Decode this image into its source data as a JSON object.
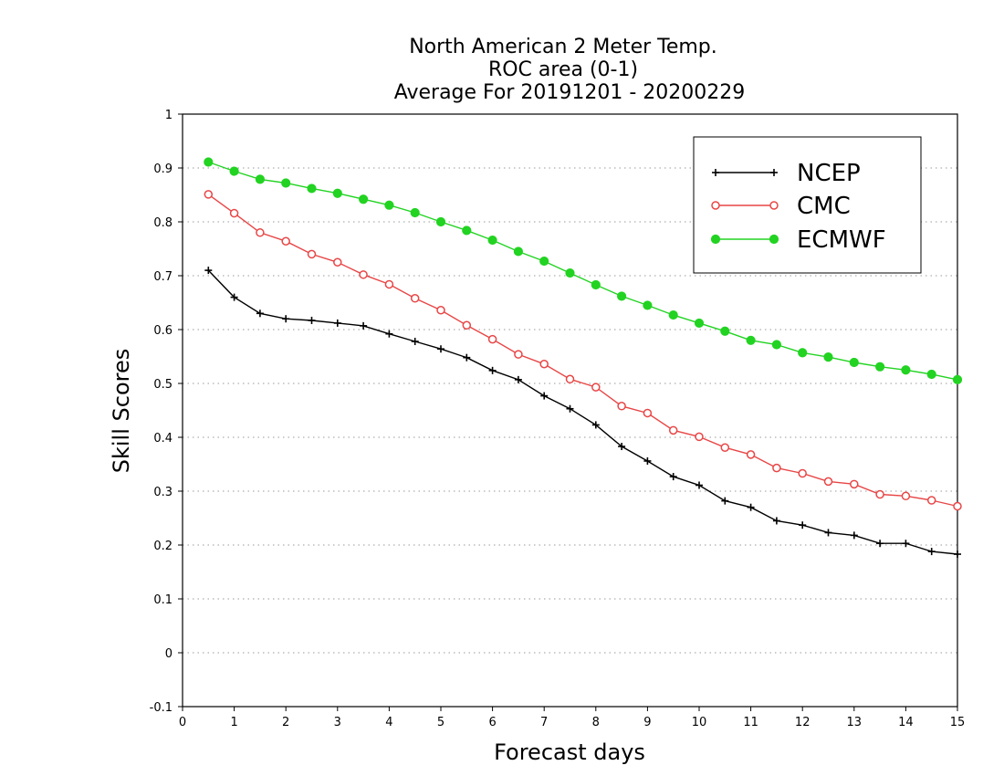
{
  "chart_data": {
    "type": "line",
    "title_lines": [
      "North American 2 Meter Temp.",
      "ROC area (0-1)",
      "Average For 20191201 - 20200229"
    ],
    "xlabel": "Forecast days",
    "ylabel": "Skill Scores",
    "xlim": [
      0,
      15
    ],
    "ylim": [
      -0.1,
      1
    ],
    "xticks": [
      0,
      1,
      2,
      3,
      4,
      5,
      6,
      7,
      8,
      9,
      10,
      11,
      12,
      13,
      14,
      15
    ],
    "xtick_labels": [
      "0",
      "1",
      "2",
      "3",
      "4",
      "5",
      "6",
      "7",
      "8",
      "9",
      "10",
      "11",
      "12",
      "13",
      "14",
      "15"
    ],
    "yticks": [
      -0.1,
      0,
      0.1,
      0.2,
      0.3,
      0.4,
      0.5,
      0.6,
      0.7,
      0.8,
      0.9,
      1
    ],
    "ytick_labels": [
      "-0.1",
      "0",
      "0.1",
      "0.2",
      "0.3",
      "0.4",
      "0.5",
      "0.6",
      "0.7",
      "0.8",
      "0.9",
      "1"
    ],
    "grid": "horizontal dotted",
    "legend_position": "top-right",
    "x": [
      0.5,
      1,
      1.5,
      2,
      2.5,
      3,
      3.5,
      4,
      4.5,
      5,
      5.5,
      6,
      6.5,
      7,
      7.5,
      8,
      8.5,
      9,
      9.5,
      10,
      10.5,
      11,
      11.5,
      12,
      12.5,
      13,
      13.5,
      14,
      14.5,
      15
    ],
    "series": [
      {
        "name": "NCEP",
        "color": "#000000",
        "marker": "plus",
        "values": [
          0.71,
          0.66,
          0.63,
          0.62,
          0.617,
          0.612,
          0.607,
          0.592,
          0.578,
          0.564,
          0.548,
          0.524,
          0.507,
          0.477,
          0.453,
          0.423,
          0.383,
          0.356,
          0.327,
          0.311,
          0.282,
          0.27,
          0.245,
          0.237,
          0.223,
          0.218,
          0.203,
          0.203,
          0.188,
          0.183
        ]
      },
      {
        "name": "CMC",
        "color": "#e84646",
        "marker": "open-circle",
        "values": [
          0.851,
          0.816,
          0.78,
          0.764,
          0.74,
          0.725,
          0.702,
          0.684,
          0.658,
          0.636,
          0.608,
          0.582,
          0.554,
          0.536,
          0.508,
          0.493,
          0.458,
          0.445,
          0.413,
          0.401,
          0.381,
          0.368,
          0.343,
          0.333,
          0.318,
          0.313,
          0.294,
          0.291,
          0.283,
          0.272
        ]
      },
      {
        "name": "ECMWF",
        "color": "#22d322",
        "marker": "filled-circle",
        "values": [
          0.911,
          0.894,
          0.879,
          0.872,
          0.862,
          0.853,
          0.842,
          0.831,
          0.817,
          0.8,
          0.784,
          0.766,
          0.745,
          0.727,
          0.705,
          0.683,
          0.662,
          0.645,
          0.627,
          0.612,
          0.597,
          0.58,
          0.572,
          0.557,
          0.549,
          0.539,
          0.531,
          0.525,
          0.517,
          0.507
        ]
      }
    ]
  }
}
